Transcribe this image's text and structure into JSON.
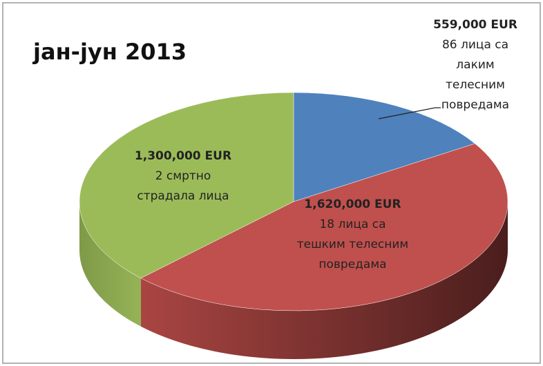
{
  "chart_data": {
    "type": "pie",
    "title": "јан-јун 2013",
    "categories": [
      "86 лица са лаким телесним повредама",
      "18 лица са тешким телесним повредама",
      "2 смртно страдала лица"
    ],
    "values": [
      559000,
      1620000,
      1300000
    ],
    "value_labels": [
      "559,000 EUR",
      "1,620,000 EUR",
      "1,300,000 EUR"
    ],
    "colors": [
      "#4f81bd",
      "#c0504d",
      "#9bbb59"
    ]
  }
}
